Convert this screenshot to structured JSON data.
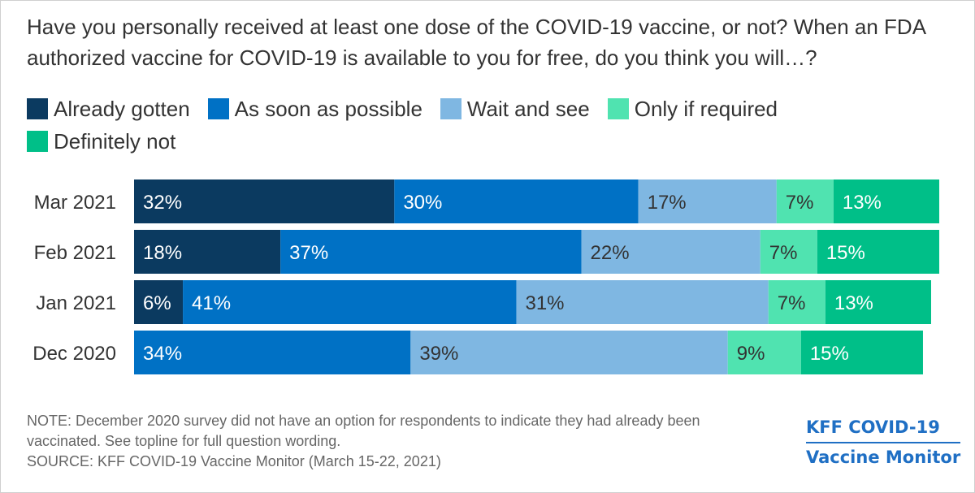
{
  "title": "Have you personally received at least one dose of the COVID-19 vaccine, or not? When an FDA authorized vaccine for COVID-19 is available to you for free, do you think you will…?",
  "note": "NOTE: December 2020 survey did not have an option for respondents to indicate they had already been vaccinated. See topline for full question wording.",
  "source": "SOURCE: KFF COVID-19 Vaccine Monitor (March 15-22, 2021)",
  "logo": {
    "line1": "KFF COVID-19",
    "line2": "Vaccine Monitor"
  },
  "colors": {
    "already": "#0b3a60",
    "asap": "#0071c5",
    "wait": "#7fb7e2",
    "required": "#50e3b0",
    "definitely_not": "#00bf88",
    "label_dark_bg": "#ffffff",
    "label_light_bg": "#333333"
  },
  "chart_data": {
    "type": "bar",
    "orientation": "horizontal-stacked",
    "categories": [
      "Mar 2021",
      "Feb 2021",
      "Jan 2021",
      "Dec 2020"
    ],
    "series": [
      {
        "name": "Already gotten",
        "values": [
          32,
          18,
          6,
          null
        ]
      },
      {
        "name": "As soon as possible",
        "values": [
          30,
          37,
          41,
          34
        ]
      },
      {
        "name": "Wait and see",
        "values": [
          17,
          22,
          31,
          39
        ]
      },
      {
        "name": "Only if required",
        "values": [
          7,
          7,
          7,
          9
        ]
      },
      {
        "name": "Definitely not",
        "values": [
          13,
          15,
          13,
          15
        ]
      }
    ],
    "unit": "%",
    "xlim": [
      0,
      100
    ],
    "legend_position": "top",
    "grid": false
  }
}
